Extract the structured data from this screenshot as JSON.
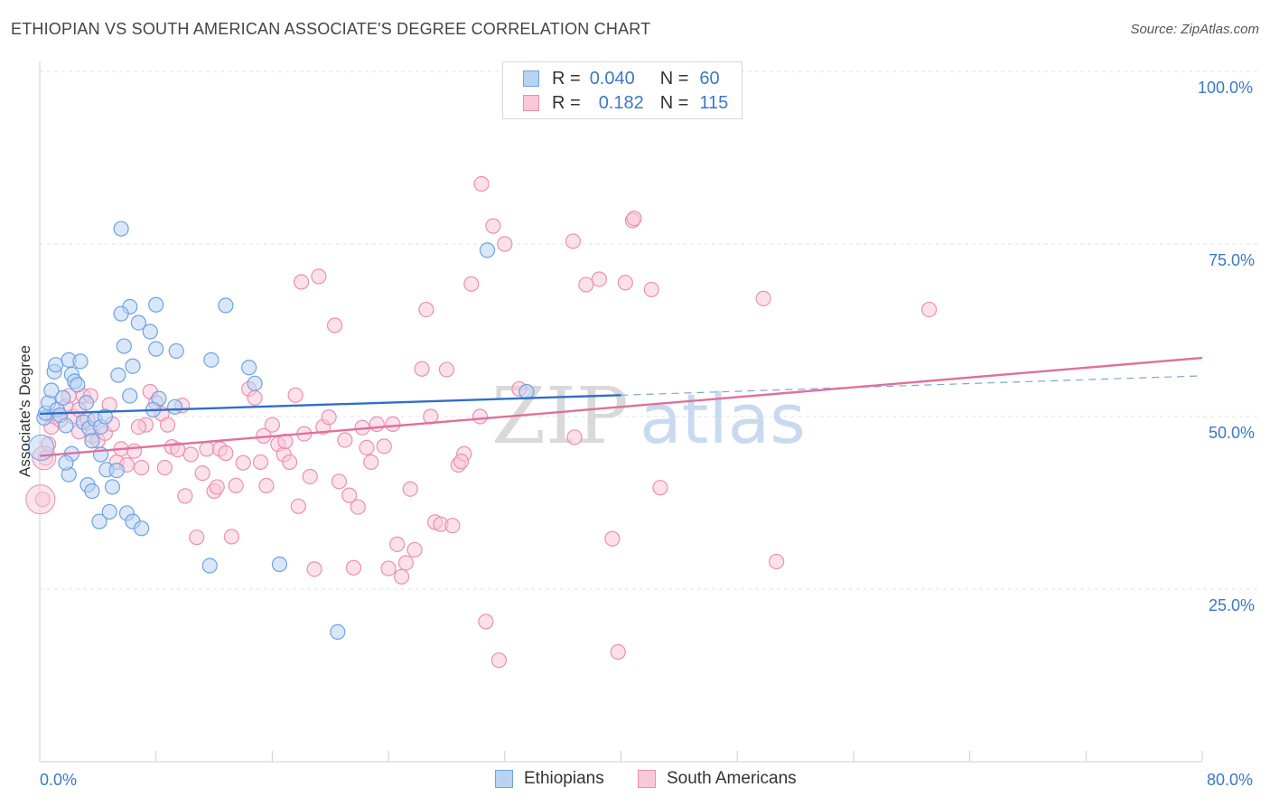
{
  "title": "ETHIOPIAN VS SOUTH AMERICAN ASSOCIATE'S DEGREE CORRELATION CHART",
  "source": "Source: ZipAtlas.com",
  "watermark": {
    "zip": "ZIP",
    "atlas": "atlas"
  },
  "legend": {
    "rows": [
      {
        "r_label": "R =",
        "r_value": "0.040",
        "n_label": "N =",
        "n_value": "60",
        "color": "#6ea2e4",
        "fill": "#b9d3f3"
      },
      {
        "r_label": "R =",
        "r_value": "0.182",
        "n_label": "N =",
        "n_value": "115",
        "color": "#ec8fb0",
        "fill": "#f9c9d8"
      }
    ]
  },
  "bottom_legend": [
    "Ethiopians",
    "South Americans"
  ],
  "colors": {
    "blue": "#3a78c9",
    "pink": "#e27aa0",
    "grid": "#e3e3e3"
  },
  "chart_data": {
    "type": "scatter",
    "title": "ETHIOPIAN VS SOUTH AMERICAN ASSOCIATE'S DEGREE CORRELATION CHART",
    "xlabel": "",
    "ylabel": "Associate's Degree",
    "xlim": [
      0,
      80
    ],
    "ylim": [
      0,
      100
    ],
    "x_tick_labels": [
      "0.0%",
      "80.0%"
    ],
    "y_tick_labels": [
      "100.0%",
      "75.0%",
      "50.0%",
      "25.0%"
    ],
    "y_ticks": [
      100,
      75,
      50,
      25
    ],
    "grid": true,
    "series": [
      {
        "name": "Ethiopians",
        "color": "#6ea2e4",
        "trend": {
          "x": [
            0,
            40
          ],
          "y": [
            50.4,
            53.1
          ],
          "dashed_to": [
            80,
            55.9
          ]
        },
        "points": [
          [
            0.3,
            49.8
          ],
          [
            0.4,
            50.5
          ],
          [
            0.6,
            52.0
          ],
          [
            0.8,
            53.8
          ],
          [
            1.0,
            56.5
          ],
          [
            1.1,
            57.5
          ],
          [
            1.2,
            51.0
          ],
          [
            1.4,
            50.2
          ],
          [
            1.6,
            52.7
          ],
          [
            1.8,
            48.7
          ],
          [
            2.0,
            58.2
          ],
          [
            2.2,
            56.1
          ],
          [
            2.4,
            55.1
          ],
          [
            2.6,
            54.6
          ],
          [
            2.8,
            58.0
          ],
          [
            3.0,
            49.2
          ],
          [
            3.2,
            52.0
          ],
          [
            3.4,
            48.3
          ],
          [
            3.6,
            46.5
          ],
          [
            2.2,
            44.6
          ],
          [
            2.0,
            41.6
          ],
          [
            1.8,
            43.3
          ],
          [
            3.3,
            40.1
          ],
          [
            3.6,
            39.2
          ],
          [
            4.2,
            44.5
          ],
          [
            4.6,
            42.3
          ],
          [
            5.0,
            39.8
          ],
          [
            5.3,
            42.2
          ],
          [
            4.1,
            34.8
          ],
          [
            4.8,
            36.2
          ],
          [
            6.0,
            36.0
          ],
          [
            6.4,
            34.8
          ],
          [
            7.0,
            33.8
          ],
          [
            6.2,
            65.9
          ],
          [
            5.6,
            64.9
          ],
          [
            6.8,
            63.6
          ],
          [
            5.8,
            60.2
          ],
          [
            7.6,
            62.3
          ],
          [
            8.0,
            59.8
          ],
          [
            9.4,
            59.5
          ],
          [
            6.4,
            57.3
          ],
          [
            8.0,
            66.2
          ],
          [
            12.8,
            66.1
          ],
          [
            11.8,
            58.2
          ],
          [
            14.4,
            57.1
          ],
          [
            14.8,
            54.8
          ],
          [
            9.3,
            51.4
          ],
          [
            8.2,
            52.6
          ],
          [
            5.4,
            56.0
          ],
          [
            3.8,
            49.6
          ],
          [
            4.2,
            48.5
          ],
          [
            6.2,
            53.0
          ],
          [
            7.8,
            51.0
          ],
          [
            5.6,
            77.2
          ],
          [
            30.8,
            74.1
          ],
          [
            33.5,
            53.6
          ],
          [
            11.7,
            28.4
          ],
          [
            16.5,
            28.6
          ],
          [
            20.5,
            18.8
          ],
          [
            4.5,
            50.0
          ]
        ]
      },
      {
        "name": "South Americans",
        "color": "#ec8fb0",
        "trend": {
          "x": [
            0,
            80
          ],
          "y": [
            44.3,
            58.5
          ]
        },
        "points": [
          [
            0.2,
            38.0
          ],
          [
            0.4,
            44.0
          ],
          [
            0.6,
            46.0
          ],
          [
            0.8,
            48.5
          ],
          [
            1.0,
            50.0
          ],
          [
            1.4,
            49.5
          ],
          [
            1.8,
            51.5
          ],
          [
            2.0,
            53.0
          ],
          [
            2.3,
            50.0
          ],
          [
            2.7,
            51.0
          ],
          [
            3.0,
            53.0
          ],
          [
            3.3,
            49.6
          ],
          [
            3.6,
            47.2
          ],
          [
            4.0,
            46.5
          ],
          [
            4.5,
            47.6
          ],
          [
            5.0,
            48.9
          ],
          [
            5.3,
            43.4
          ],
          [
            5.6,
            45.3
          ],
          [
            6.0,
            43.0
          ],
          [
            6.5,
            45.0
          ],
          [
            7.0,
            42.6
          ],
          [
            7.3,
            48.8
          ],
          [
            7.6,
            53.6
          ],
          [
            8.0,
            52.0
          ],
          [
            8.4,
            50.4
          ],
          [
            8.8,
            48.8
          ],
          [
            9.1,
            45.6
          ],
          [
            9.5,
            45.2
          ],
          [
            10.0,
            38.5
          ],
          [
            10.4,
            44.5
          ],
          [
            10.8,
            32.5
          ],
          [
            11.2,
            41.8
          ],
          [
            11.5,
            45.3
          ],
          [
            12.0,
            39.2
          ],
          [
            12.4,
            45.3
          ],
          [
            12.8,
            44.7
          ],
          [
            13.2,
            32.6
          ],
          [
            13.5,
            40.0
          ],
          [
            14.0,
            43.3
          ],
          [
            14.4,
            54.0
          ],
          [
            14.8,
            52.7
          ],
          [
            15.2,
            43.4
          ],
          [
            15.6,
            40.0
          ],
          [
            16.0,
            48.8
          ],
          [
            16.4,
            46.0
          ],
          [
            16.8,
            44.5
          ],
          [
            17.2,
            43.4
          ],
          [
            17.6,
            53.1
          ],
          [
            17.8,
            37.0
          ],
          [
            18.0,
            69.5
          ],
          [
            18.2,
            47.5
          ],
          [
            18.6,
            41.3
          ],
          [
            18.9,
            27.9
          ],
          [
            19.2,
            70.3
          ],
          [
            19.5,
            48.5
          ],
          [
            19.9,
            49.9
          ],
          [
            20.3,
            63.2
          ],
          [
            20.6,
            40.6
          ],
          [
            21.0,
            46.6
          ],
          [
            21.3,
            38.6
          ],
          [
            21.6,
            28.1
          ],
          [
            21.9,
            36.9
          ],
          [
            22.2,
            48.4
          ],
          [
            22.5,
            45.5
          ],
          [
            22.8,
            43.4
          ],
          [
            23.2,
            48.9
          ],
          [
            23.7,
            45.7
          ],
          [
            24.0,
            28.0
          ],
          [
            24.3,
            48.9
          ],
          [
            24.6,
            31.5
          ],
          [
            24.9,
            26.8
          ],
          [
            25.2,
            28.8
          ],
          [
            25.5,
            39.5
          ],
          [
            25.8,
            30.7
          ],
          [
            26.3,
            56.9
          ],
          [
            26.6,
            65.5
          ],
          [
            26.9,
            50.0
          ],
          [
            27.2,
            34.7
          ],
          [
            27.6,
            34.4
          ],
          [
            28.0,
            56.8
          ],
          [
            28.4,
            34.2
          ],
          [
            28.8,
            43.0
          ],
          [
            29.2,
            44.6
          ],
          [
            29.7,
            69.2
          ],
          [
            30.3,
            50.0
          ],
          [
            30.4,
            83.7
          ],
          [
            30.7,
            20.3
          ],
          [
            31.2,
            77.6
          ],
          [
            31.6,
            14.7
          ],
          [
            32.0,
            75.0
          ],
          [
            36.7,
            75.4
          ],
          [
            36.8,
            47.0
          ],
          [
            37.6,
            69.1
          ],
          [
            38.5,
            69.9
          ],
          [
            39.4,
            32.3
          ],
          [
            39.8,
            15.9
          ],
          [
            40.3,
            69.4
          ],
          [
            40.8,
            78.4
          ],
          [
            40.9,
            78.7
          ],
          [
            42.1,
            68.4
          ],
          [
            42.7,
            39.7
          ],
          [
            49.8,
            67.1
          ],
          [
            50.7,
            29.0
          ],
          [
            61.2,
            65.5
          ],
          [
            33.0,
            54.0
          ],
          [
            29.0,
            43.5
          ],
          [
            9.8,
            51.6
          ],
          [
            4.8,
            51.7
          ],
          [
            3.5,
            53.0
          ],
          [
            2.7,
            47.8
          ],
          [
            6.8,
            48.5
          ],
          [
            8.6,
            42.6
          ],
          [
            12.2,
            39.8
          ],
          [
            15.4,
            47.2
          ],
          [
            16.9,
            46.4
          ]
        ]
      }
    ]
  }
}
